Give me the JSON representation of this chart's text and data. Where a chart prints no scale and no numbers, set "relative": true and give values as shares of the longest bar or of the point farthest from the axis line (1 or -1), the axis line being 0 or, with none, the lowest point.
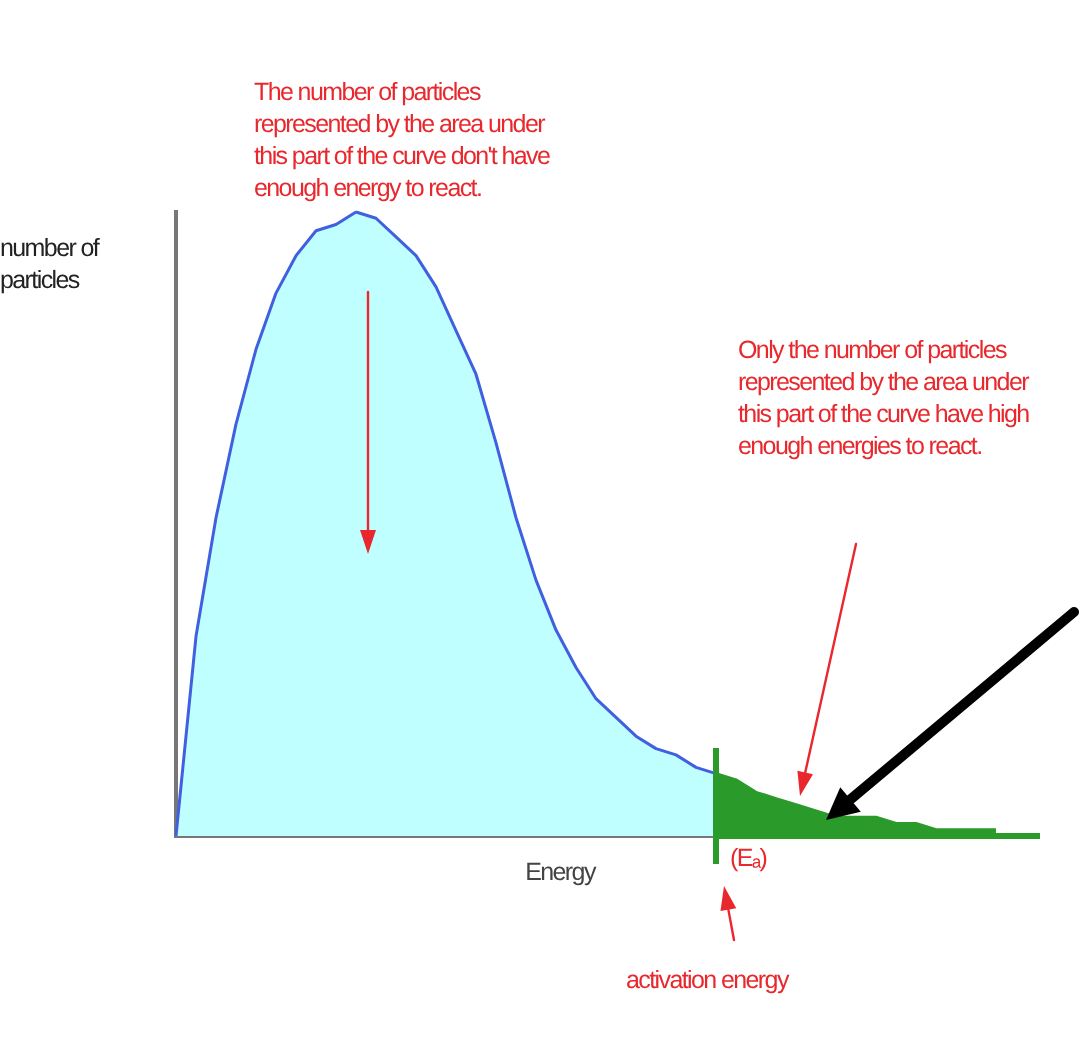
{
  "chart_data": {
    "type": "area",
    "relative": true,
    "xlabel": "Energy",
    "ylabel": "number of particles",
    "categories": [
      null,
      null,
      null,
      null,
      null,
      null,
      null,
      null,
      null,
      null,
      null,
      null,
      null,
      null,
      null,
      null,
      null,
      null,
      null,
      null,
      null,
      null,
      null,
      null,
      null,
      null,
      null,
      null,
      null,
      null,
      null,
      null,
      null,
      null,
      null,
      null,
      null,
      null,
      null,
      null,
      null,
      null
    ],
    "series": [
      {
        "color": "#c0ffff",
        "values": [
          0,
          0.32,
          0.51,
          0.66,
          0.78,
          0.87,
          0.93,
          0.97,
          0.98,
          1,
          0.99,
          0.96,
          0.93,
          0.88,
          0.81,
          0.74,
          0.63,
          0.51,
          0.41,
          0.33,
          0.27,
          0.22,
          0.19,
          0.16,
          0.14,
          0.13,
          0.11,
          0.1,
          null,
          null,
          null,
          null,
          null,
          null,
          null,
          null,
          null,
          null,
          null,
          null,
          null,
          null
        ]
      },
      {
        "color": "#2a9a2a",
        "values": [
          null,
          null,
          null,
          null,
          null,
          null,
          null,
          null,
          null,
          null,
          null,
          null,
          null,
          null,
          null,
          null,
          null,
          null,
          null,
          null,
          null,
          null,
          null,
          null,
          null,
          null,
          null,
          0.1,
          0.09,
          0.07,
          0.06,
          0.05,
          0.04,
          0.03,
          0.03,
          0.03,
          0.02,
          0.02,
          0.01,
          0.01,
          0.01,
          0.01
        ]
      }
    ],
    "legend": false,
    "grid": false,
    "tick_labels": false,
    "annotations": [
      "The number of particles represented by the area under this part of the curve don't have enough energy to react.",
      "Only the number of particles represented by the area under this part of the curve have high enough energies to react.",
      "(Eₐ)",
      "activation energy"
    ]
  }
}
